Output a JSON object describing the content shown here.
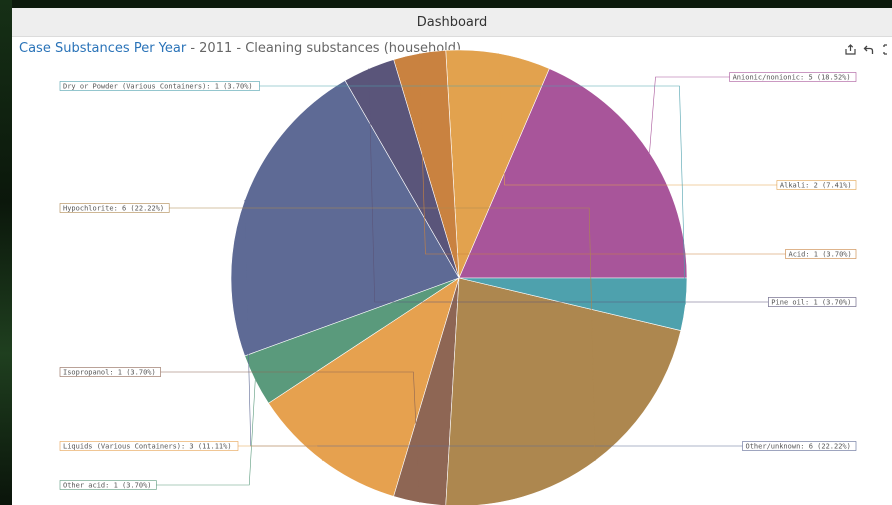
{
  "window": {
    "title": "Dashboard"
  },
  "panel": {
    "title_main": "Case Substances Per Year",
    "title_rest": " - 2011 - Cleaning substances (household)",
    "toolbar": [
      {
        "name": "share-icon",
        "glyph": "share"
      },
      {
        "name": "undo-icon",
        "glyph": "undo"
      },
      {
        "name": "fullscreen-icon",
        "glyph": "fullscreen"
      }
    ]
  },
  "chart_data": {
    "type": "pie",
    "title": "Case Substances Per Year - 2011 - Cleaning substances (household)",
    "slices": [
      {
        "label": "Anionic/nonionic",
        "value": 5,
        "percent": "18.52%",
        "color": "#a8559a",
        "text": "Anionic/nonionic: 5 (18.52%)"
      },
      {
        "label": "Alkali",
        "value": 2,
        "percent": "7.41%",
        "color": "#e2a24e",
        "text": "Alkali: 2 (7.41%)"
      },
      {
        "label": "Acid",
        "value": 1,
        "percent": "3.70%",
        "color": "#c98240",
        "text": "Acid: 1 (3.70%)"
      },
      {
        "label": "Pine oil",
        "value": 1,
        "percent": "3.70%",
        "color": "#5a557a",
        "text": "Pine oil: 1 (3.70%)"
      },
      {
        "label": "Other/unknown",
        "value": 6,
        "percent": "22.22%",
        "color": "#5e6a95",
        "text": "Other/unknown: 6 (22.22%)"
      },
      {
        "label": "Other acid",
        "value": 1,
        "percent": "3.70%",
        "color": "#5a9a7c",
        "text": "Other acid: 1 (3.70%)"
      },
      {
        "label": "Liquids (Various Containers)",
        "value": 3,
        "percent": "11.11%",
        "color": "#e6a14f",
        "text": "Liquids (Various Containers): 3 (11.11%)"
      },
      {
        "label": "Isopropanol",
        "value": 1,
        "percent": "3.70%",
        "color": "#8e6654",
        "text": "Isopropanol: 1 (3.70%)"
      },
      {
        "label": "Hypochlorite",
        "value": 6,
        "percent": "22.22%",
        "color": "#ad874f",
        "text": "Hypochlorite: 6 (22.22%)"
      },
      {
        "label": "Dry or Powder (Various Containers)",
        "value": 1,
        "percent": "3.70%",
        "color": "#4ea1ad",
        "text": "Dry or Powder (Various Containers): 1 (3.70%)"
      }
    ]
  }
}
